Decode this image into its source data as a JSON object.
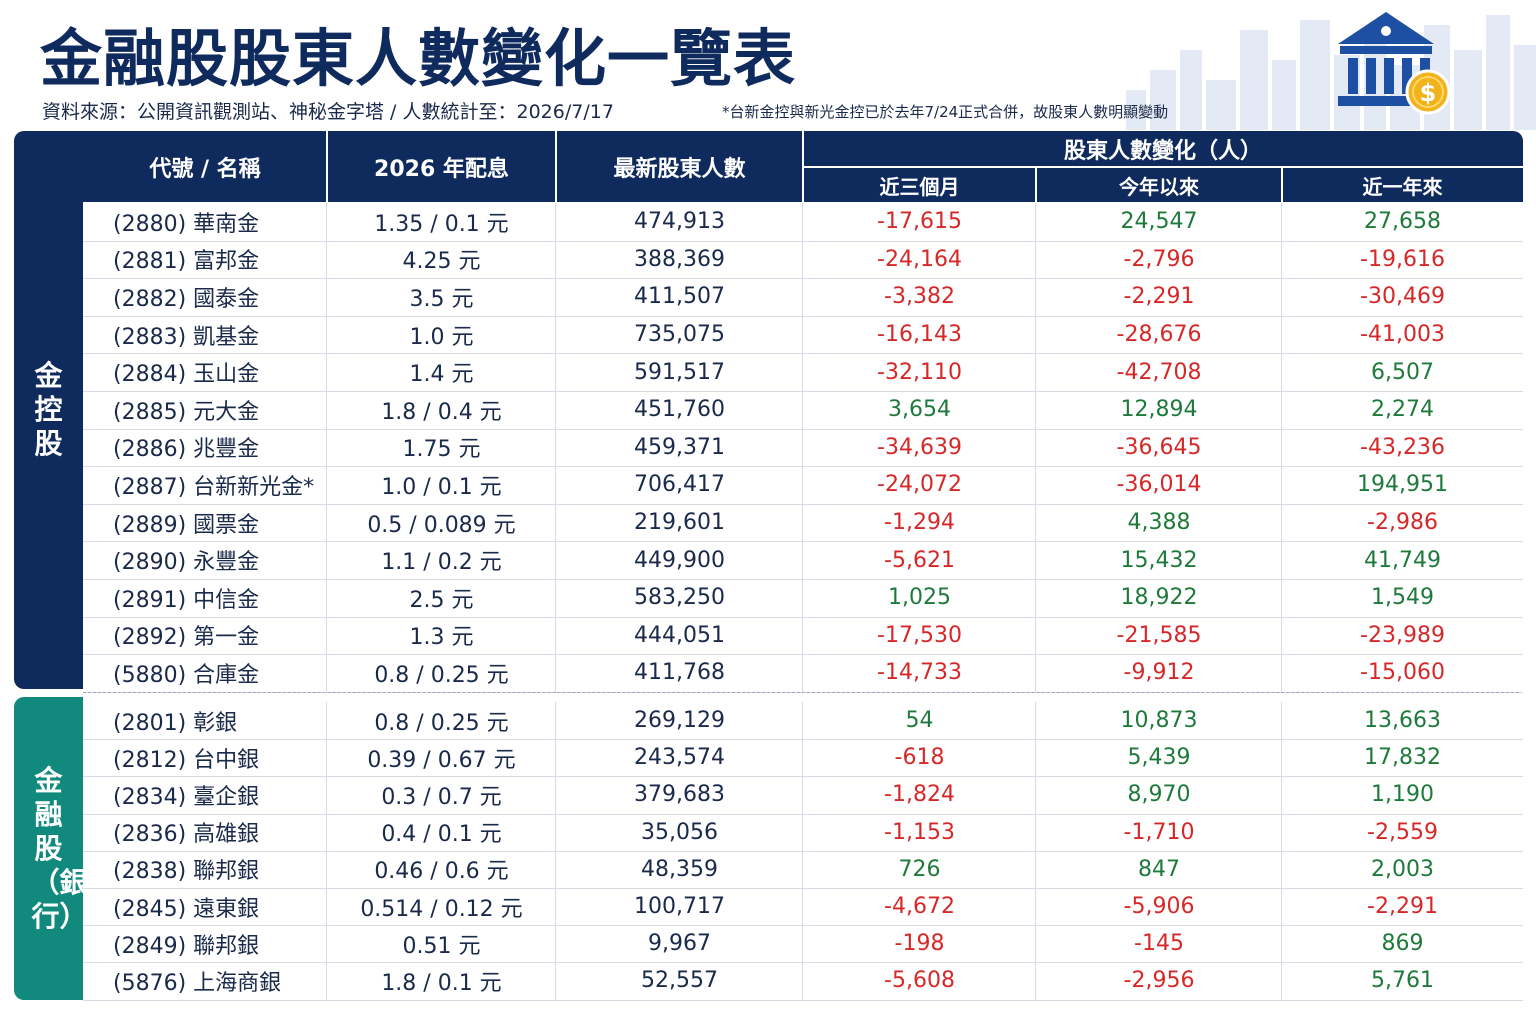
{
  "title": "金融股股東人數變化一覽表",
  "source": "資料來源：公開資訊觀測站、神秘金字塔 / 人數統計至：2026/7/17",
  "note": "*台新金控與新光金控已於去年7/24正式合併，故股東人數明顯變動",
  "headers": {
    "code_name": "代號 / 名稱",
    "dividend": "2026 年配息",
    "holders": "最新股東人數",
    "change_group": "股東人數變化（人）",
    "m3": "近三個月",
    "ytd": "今年以來",
    "y1": "近一年來"
  },
  "groups": [
    {
      "label": "金控股",
      "rows": [
        {
          "name": "(2880) 華南金",
          "dividend": "1.35 / 0.1 元",
          "holders": "474,913",
          "m3": "-17,615",
          "ytd": "24,547",
          "y1": "27,658"
        },
        {
          "name": "(2881) 富邦金",
          "dividend": "4.25 元",
          "holders": "388,369",
          "m3": "-24,164",
          "ytd": "-2,796",
          "y1": "-19,616"
        },
        {
          "name": "(2882) 國泰金",
          "dividend": "3.5 元",
          "holders": "411,507",
          "m3": "-3,382",
          "ytd": "-2,291",
          "y1": "-30,469"
        },
        {
          "name": "(2883) 凱基金",
          "dividend": "1.0 元",
          "holders": "735,075",
          "m3": "-16,143",
          "ytd": "-28,676",
          "y1": "-41,003"
        },
        {
          "name": "(2884) 玉山金",
          "dividend": "1.4 元",
          "holders": "591,517",
          "m3": "-32,110",
          "ytd": "-42,708",
          "y1": "6,507"
        },
        {
          "name": "(2885) 元大金",
          "dividend": "1.8 / 0.4 元",
          "holders": "451,760",
          "m3": "3,654",
          "ytd": "12,894",
          "y1": "2,274"
        },
        {
          "name": "(2886) 兆豐金",
          "dividend": "1.75 元",
          "holders": "459,371",
          "m3": "-34,639",
          "ytd": "-36,645",
          "y1": "-43,236"
        },
        {
          "name": "(2887) 台新新光金*",
          "dividend": "1.0 / 0.1 元",
          "holders": "706,417",
          "m3": "-24,072",
          "ytd": "-36,014",
          "y1": "194,951"
        },
        {
          "name": "(2889) 國票金",
          "dividend": "0.5 / 0.089 元",
          "holders": "219,601",
          "m3": "-1,294",
          "ytd": "4,388",
          "y1": "-2,986"
        },
        {
          "name": "(2890) 永豐金",
          "dividend": "1.1 / 0.2 元",
          "holders": "449,900",
          "m3": "-5,621",
          "ytd": "15,432",
          "y1": "41,749"
        },
        {
          "name": "(2891) 中信金",
          "dividend": "2.5 元",
          "holders": "583,250",
          "m3": "1,025",
          "ytd": "18,922",
          "y1": "1,549"
        },
        {
          "name": "(2892) 第一金",
          "dividend": "1.3 元",
          "holders": "444,051",
          "m3": "-17,530",
          "ytd": "-21,585",
          "y1": "-23,989"
        },
        {
          "name": "(5880) 合庫金",
          "dividend": "0.8 / 0.25 元",
          "holders": "411,768",
          "m3": "-14,733",
          "ytd": "-9,912",
          "y1": "-15,060"
        }
      ]
    },
    {
      "label": "金融股（銀行）",
      "rows": [
        {
          "name": "(2801) 彰銀",
          "dividend": "0.8 / 0.25 元",
          "holders": "269,129",
          "m3": "54",
          "ytd": "10,873",
          "y1": "13,663"
        },
        {
          "name": "(2812) 台中銀",
          "dividend": "0.39 / 0.67 元",
          "holders": "243,574",
          "m3": "-618",
          "ytd": "5,439",
          "y1": "17,832"
        },
        {
          "name": "(2834) 臺企銀",
          "dividend": "0.3 / 0.7 元",
          "holders": "379,683",
          "m3": "-1,824",
          "ytd": "8,970",
          "y1": "1,190"
        },
        {
          "name": "(2836) 高雄銀",
          "dividend": "0.4 / 0.1 元",
          "holders": "35,056",
          "m3": "-1,153",
          "ytd": "-1,710",
          "y1": "-2,559"
        },
        {
          "name": "(2838) 聯邦銀",
          "dividend": "0.46 / 0.6 元",
          "holders": "48,359",
          "m3": "726",
          "ytd": "847",
          "y1": "2,003"
        },
        {
          "name": "(2845) 遠東銀",
          "dividend": "0.514 / 0.12 元",
          "holders": "100,717",
          "m3": "-4,672",
          "ytd": "-5,906",
          "y1": "-2,291"
        },
        {
          "name": "(2849) 聯邦銀",
          "dividend": "0.51 元",
          "holders": "9,967",
          "m3": "-198",
          "ytd": "-145",
          "y1": "869"
        },
        {
          "name": "(5876) 上海商銀",
          "dividend": "1.8 / 0.1 元",
          "holders": "52,557",
          "m3": "-5,608",
          "ytd": "-2,956",
          "y1": "5,761"
        }
      ]
    }
  ],
  "colors": {
    "navy": "#0f2a5c",
    "teal": "#12897d",
    "negative": "#d62828",
    "positive": "#1e7a3a"
  },
  "icons": [
    "city-skyline-icon",
    "bank-building-icon",
    "dollar-coin-icon"
  ]
}
